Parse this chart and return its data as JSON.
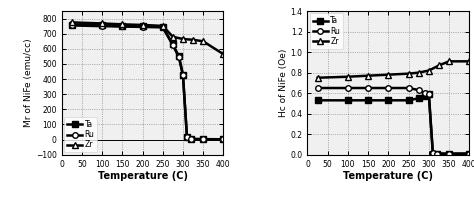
{
  "left": {
    "ylabel": "Mr of NiFe (emu/cc)",
    "xlabel": "Temperature (C)",
    "ylim": [
      -100,
      850
    ],
    "xlim": [
      0,
      400
    ],
    "yticks": [
      -100,
      0,
      100,
      200,
      300,
      400,
      500,
      600,
      700,
      800
    ],
    "xticks": [
      0,
      50,
      100,
      150,
      200,
      250,
      300,
      350,
      400
    ],
    "Ta": {
      "x": [
        25,
        100,
        150,
        200,
        250,
        275,
        290,
        300,
        310,
        320,
        350,
        400
      ],
      "y": [
        760,
        755,
        750,
        748,
        745,
        630,
        550,
        430,
        20,
        5,
        3,
        2
      ],
      "marker": "s",
      "label": "Ta"
    },
    "Ru": {
      "x": [
        25,
        100,
        150,
        200,
        250,
        275,
        290,
        300,
        310,
        320,
        350,
        400
      ],
      "y": [
        755,
        750,
        748,
        745,
        742,
        625,
        545,
        425,
        15,
        3,
        2,
        2
      ],
      "marker": "o",
      "label": "Ru"
    },
    "Zr": {
      "x": [
        25,
        100,
        150,
        200,
        250,
        275,
        300,
        325,
        350,
        400
      ],
      "y": [
        775,
        768,
        762,
        758,
        752,
        680,
        665,
        660,
        650,
        565
      ],
      "marker": "^",
      "label": "Zr"
    }
  },
  "right": {
    "ylabel": "Hc of NiFe (Oe)",
    "xlabel": "Temperature (C)",
    "ylim": [
      0.0,
      1.4
    ],
    "xlim": [
      0,
      400
    ],
    "yticks": [
      0.0,
      0.2,
      0.4,
      0.6,
      0.8,
      1.0,
      1.2,
      1.4
    ],
    "xticks": [
      0,
      50,
      100,
      150,
      200,
      250,
      300,
      350,
      400
    ],
    "Ta": {
      "x": [
        25,
        100,
        150,
        200,
        250,
        275,
        290,
        300,
        310,
        320,
        350,
        400
      ],
      "y": [
        0.53,
        0.53,
        0.53,
        0.53,
        0.53,
        0.55,
        0.57,
        0.59,
        0.01,
        0.01,
        0.01,
        0.01
      ],
      "marker": "s",
      "label": "Ta"
    },
    "Ru": {
      "x": [
        25,
        100,
        150,
        200,
        250,
        275,
        290,
        300,
        310,
        320,
        350,
        400
      ],
      "y": [
        0.65,
        0.65,
        0.65,
        0.65,
        0.65,
        0.63,
        0.6,
        0.59,
        0.02,
        0.01,
        0.01,
        0.01
      ],
      "marker": "o",
      "label": "Ru"
    },
    "Zr": {
      "x": [
        25,
        100,
        150,
        200,
        250,
        275,
        300,
        325,
        350,
        400
      ],
      "y": [
        0.75,
        0.76,
        0.77,
        0.78,
        0.79,
        0.8,
        0.82,
        0.87,
        0.91,
        0.91
      ],
      "marker": "^",
      "label": "Zr"
    }
  }
}
